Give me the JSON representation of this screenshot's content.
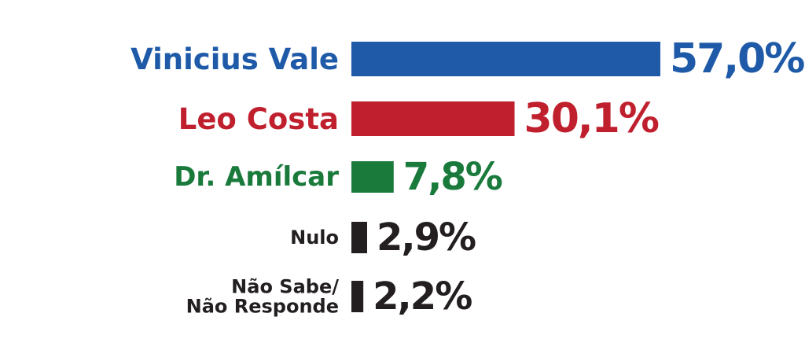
{
  "chart_data": {
    "type": "bar",
    "orientation": "horizontal",
    "categories": [
      "Vinicius Vale",
      "Leo Costa",
      "Dr. Amílcar",
      "Nulo",
      "Não Sabe/ Não Responde"
    ],
    "category_lines": [
      [
        "Vinicius Vale"
      ],
      [
        "Leo Costa"
      ],
      [
        "Dr. Amílcar"
      ],
      [
        "Nulo"
      ],
      [
        "Não Sabe/",
        "Não Responde"
      ]
    ],
    "values": [
      57.0,
      30.1,
      7.8,
      2.9,
      2.2
    ],
    "value_labels": [
      "57,0%",
      "30,1%",
      "7,8%",
      "2,9%",
      "2,2%"
    ],
    "colors": [
      "#1e5aa8",
      "#c0202e",
      "#1a7a3c",
      "#231f20",
      "#231f20"
    ],
    "xlim": [
      0,
      57.0
    ],
    "grid": false,
    "legend": "none"
  }
}
